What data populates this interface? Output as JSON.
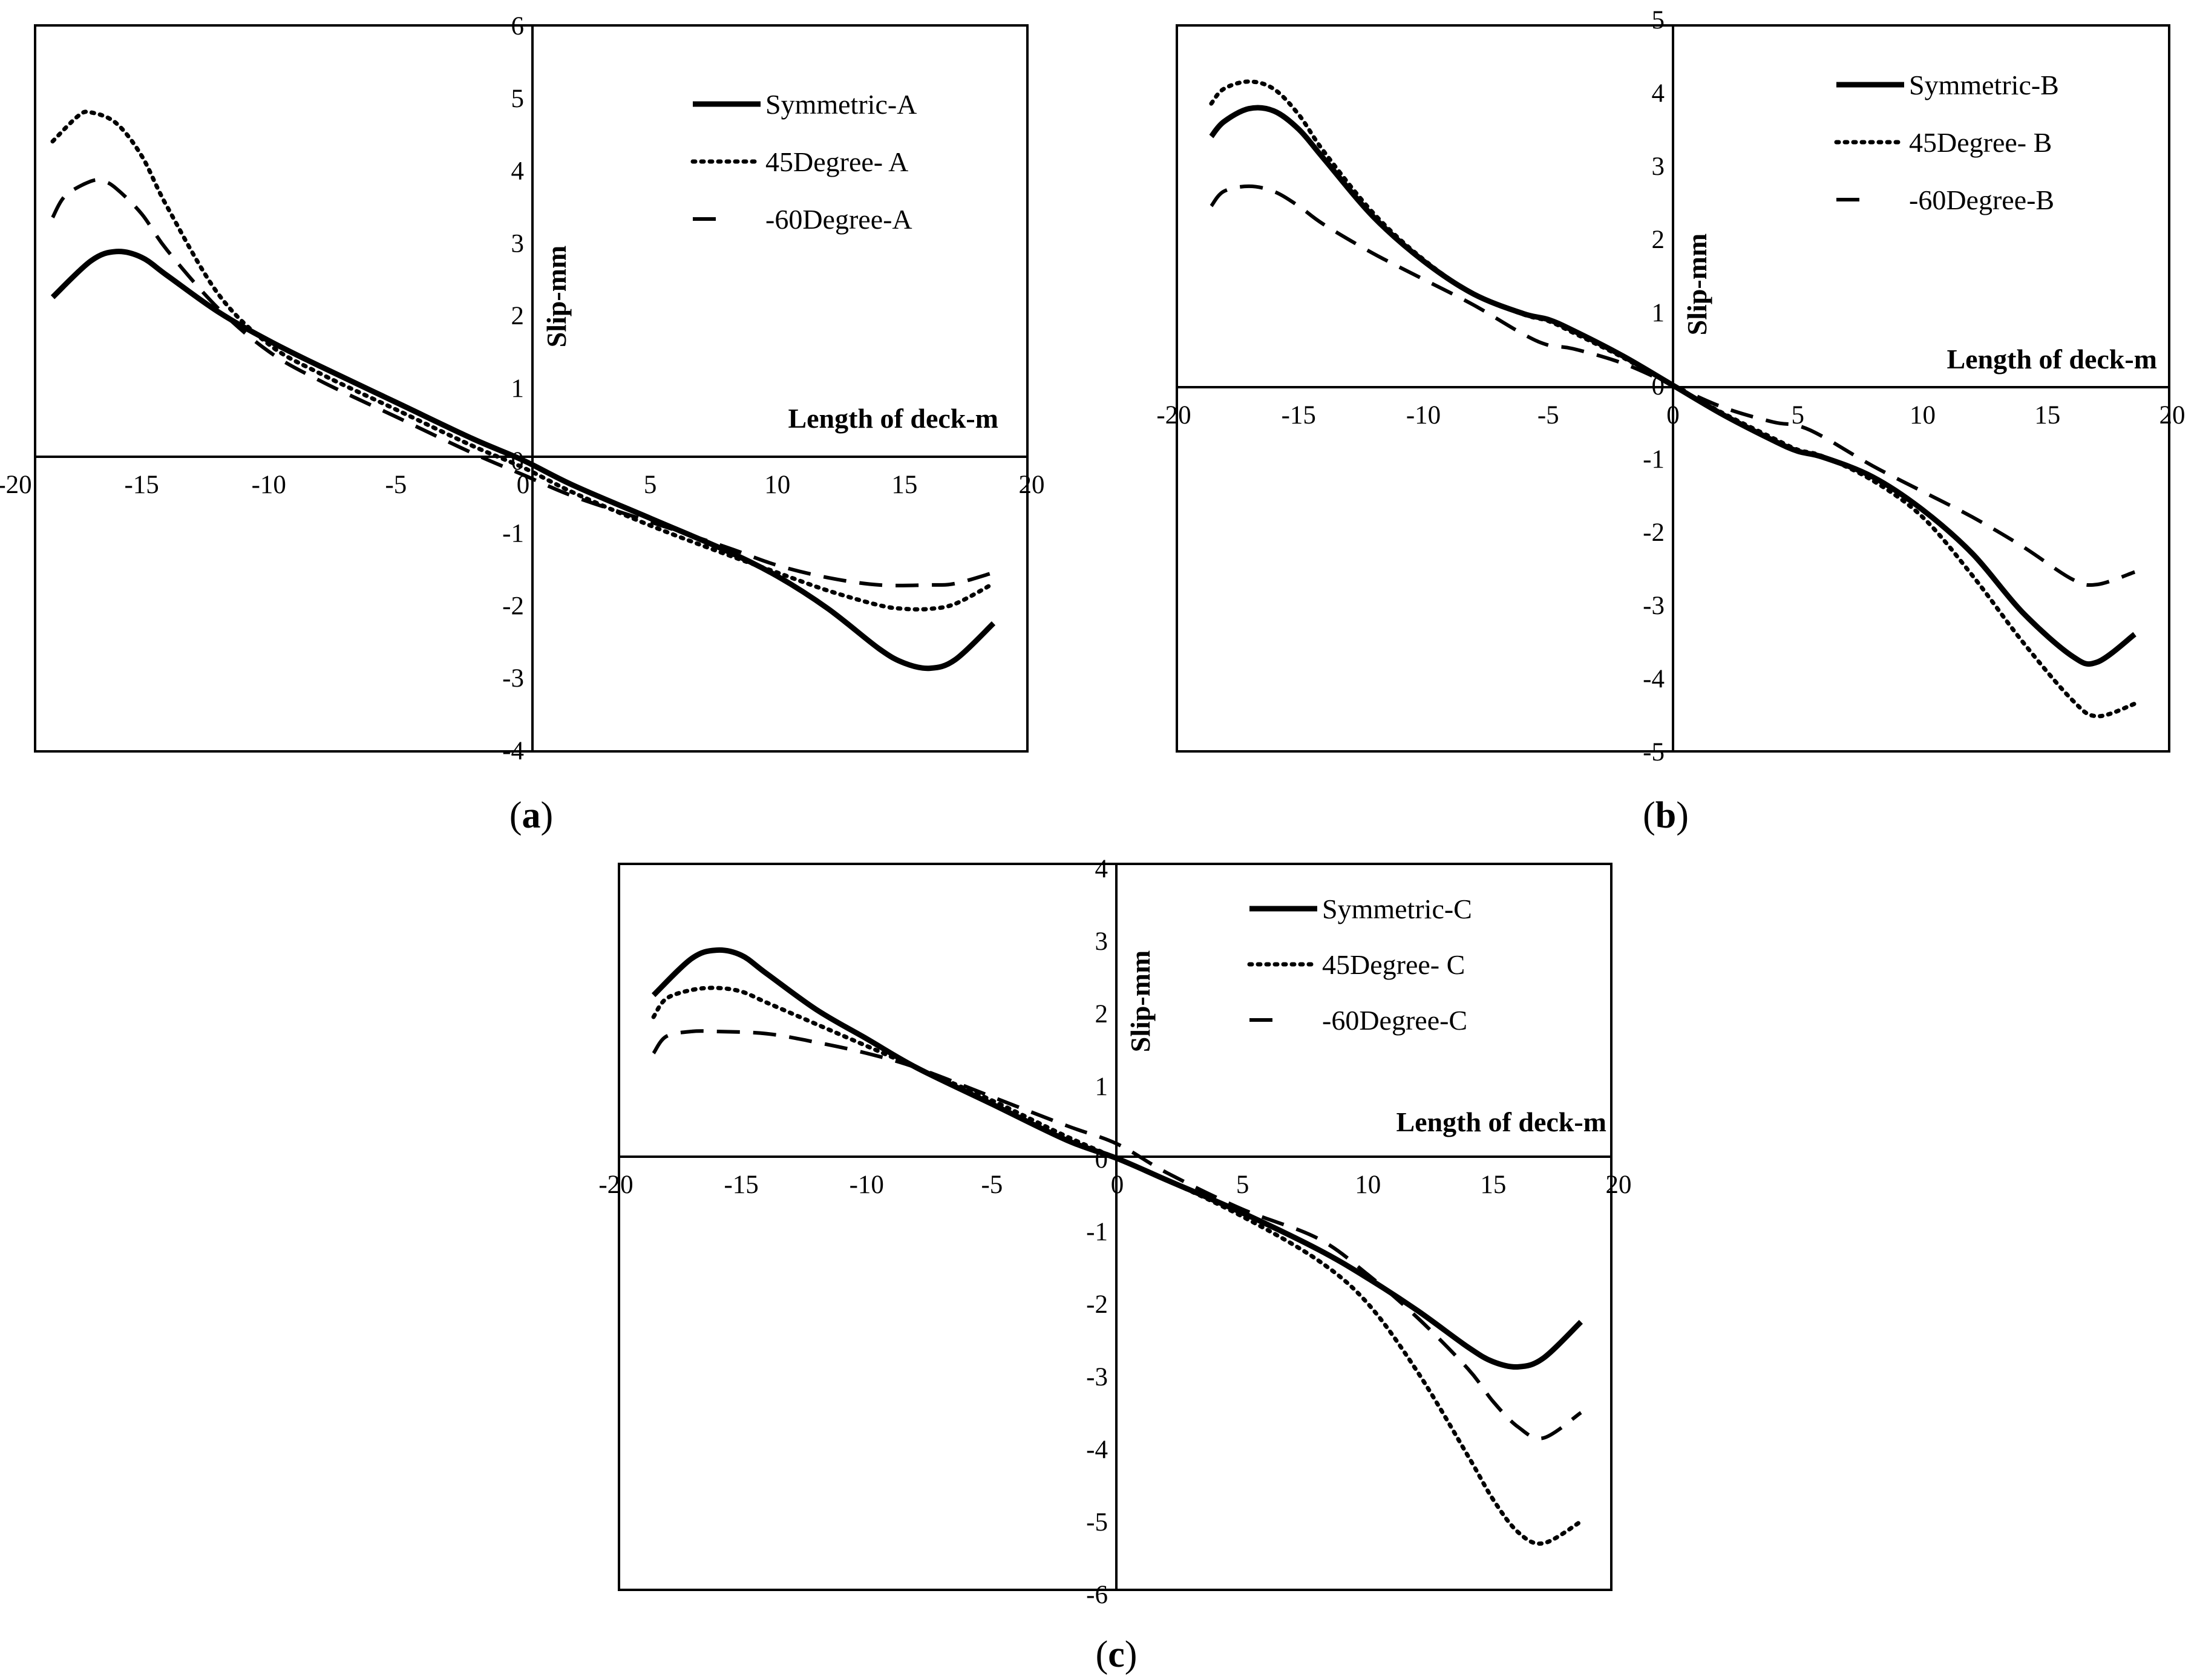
{
  "figure": {
    "captions": [
      "(a)",
      "(b)",
      "(c)"
    ]
  },
  "chart_data": [
    {
      "id": "a",
      "type": "line",
      "caption": "(a)",
      "caption_letter": "a",
      "xlabel": "Length of deck-m",
      "ylabel": "Slip-mm",
      "xlim": [
        -20,
        20
      ],
      "ylim": [
        -4,
        6
      ],
      "xticks": [
        -20,
        -15,
        -10,
        -5,
        0,
        5,
        10,
        15,
        20
      ],
      "yticks": [
        -4,
        -3,
        -2,
        -1,
        0,
        1,
        2,
        3,
        4,
        5,
        6
      ],
      "legend_position": "top-right",
      "grid": false,
      "series": [
        {
          "name": "Symmetric-A",
          "style": "solid",
          "x": [
            -18.5,
            -17,
            -16,
            -15,
            -14,
            -12,
            -10,
            -8,
            -5,
            -2,
            0,
            2,
            5,
            8,
            10,
            12,
            14,
            15,
            16,
            17,
            18.5
          ],
          "y": [
            2.25,
            2.75,
            2.88,
            2.8,
            2.55,
            2.05,
            1.65,
            1.3,
            0.8,
            0.3,
            0.0,
            -0.35,
            -0.8,
            -1.25,
            -1.6,
            -2.05,
            -2.6,
            -2.8,
            -2.87,
            -2.75,
            -2.25
          ]
        },
        {
          "name": "45Degree- A",
          "style": "dotted",
          "x": [
            -18.5,
            -17.5,
            -17,
            -16,
            -15,
            -14,
            -12,
            -10,
            -8,
            -5,
            -2,
            0,
            2,
            5,
            8,
            10,
            12,
            14,
            15,
            16,
            17,
            18.5
          ],
          "y": [
            4.4,
            4.75,
            4.8,
            4.65,
            4.2,
            3.5,
            2.3,
            1.6,
            1.2,
            0.7,
            0.2,
            -0.1,
            -0.45,
            -0.9,
            -1.3,
            -1.55,
            -1.8,
            -2.0,
            -2.05,
            -2.05,
            -1.98,
            -1.7
          ]
        },
        {
          "name": "-60Degree-A",
          "style": "dashed",
          "x": [
            -18.5,
            -18,
            -17,
            -16.5,
            -16,
            -15,
            -14,
            -12,
            -10,
            -8,
            -5,
            -2,
            0,
            2,
            5,
            8,
            10,
            12,
            14,
            16,
            17,
            18.5
          ],
          "y": [
            3.35,
            3.65,
            3.85,
            3.85,
            3.75,
            3.4,
            2.9,
            2.1,
            1.5,
            1.1,
            0.6,
            0.1,
            -0.2,
            -0.5,
            -0.85,
            -1.2,
            -1.45,
            -1.62,
            -1.72,
            -1.72,
            -1.7,
            -1.55
          ]
        }
      ]
    },
    {
      "id": "b",
      "type": "line",
      "caption": "(b)",
      "caption_letter": "b",
      "xlabel": "Length of deck-m",
      "ylabel": "Slip-mm",
      "xlim": [
        -20,
        20
      ],
      "ylim": [
        -5,
        5
      ],
      "xticks": [
        -20,
        -15,
        -10,
        -5,
        0,
        5,
        10,
        15,
        20
      ],
      "yticks": [
        -5,
        -4,
        -3,
        -2,
        -1,
        0,
        1,
        2,
        3,
        4,
        5
      ],
      "legend_position": "top-right",
      "grid": false,
      "series": [
        {
          "name": "Symmetric-B",
          "style": "solid",
          "x": [
            -18.5,
            -18,
            -17,
            -16,
            -15,
            -14,
            -12,
            -10,
            -8,
            -6,
            -5,
            -4,
            -2,
            0,
            2,
            4,
            5,
            6,
            8,
            10,
            12,
            14,
            16,
            17,
            18.5
          ],
          "y": [
            3.4,
            3.6,
            3.78,
            3.75,
            3.5,
            3.1,
            2.3,
            1.7,
            1.25,
            0.98,
            0.9,
            0.75,
            0.4,
            0.0,
            -0.4,
            -0.75,
            -0.9,
            -0.98,
            -1.25,
            -1.7,
            -2.3,
            -3.1,
            -3.7,
            -3.78,
            -3.4
          ]
        },
        {
          "name": "45Degree- B",
          "style": "dotted",
          "x": [
            -18.5,
            -18,
            -17,
            -16,
            -15,
            -14,
            -12,
            -10,
            -8,
            -6,
            -5,
            -4,
            -2,
            0,
            2,
            4,
            5,
            6,
            8,
            10,
            12,
            14,
            16,
            17,
            18.5
          ],
          "y": [
            3.85,
            4.05,
            4.15,
            4.05,
            3.7,
            3.2,
            2.35,
            1.72,
            1.25,
            0.97,
            0.88,
            0.72,
            0.38,
            0.0,
            -0.38,
            -0.72,
            -0.88,
            -0.97,
            -1.3,
            -1.8,
            -2.6,
            -3.5,
            -4.3,
            -4.52,
            -4.35
          ]
        },
        {
          "name": "-60Degree-B",
          "style": "dashed",
          "x": [
            -18.5,
            -18,
            -17,
            -16,
            -15,
            -14,
            -12,
            -10,
            -8,
            -6,
            -5,
            -4,
            -2,
            0,
            2,
            4,
            5,
            6,
            8,
            10,
            12,
            14,
            16,
            17,
            18.5
          ],
          "y": [
            2.45,
            2.65,
            2.72,
            2.65,
            2.45,
            2.2,
            1.8,
            1.45,
            1.1,
            0.7,
            0.55,
            0.5,
            0.3,
            0.0,
            -0.3,
            -0.5,
            -0.55,
            -0.7,
            -1.1,
            -1.45,
            -1.8,
            -2.2,
            -2.65,
            -2.72,
            -2.55
          ]
        }
      ]
    },
    {
      "id": "c",
      "type": "line",
      "caption": "(c)",
      "caption_letter": "c",
      "xlabel": "Length of deck-m",
      "ylabel": "Slip-mm",
      "xlim": [
        -20,
        20
      ],
      "ylim": [
        -6,
        4
      ],
      "xticks": [
        -20,
        -15,
        -10,
        -5,
        0,
        5,
        10,
        15,
        20
      ],
      "yticks": [
        -6,
        -5,
        -4,
        -3,
        -2,
        -1,
        0,
        1,
        2,
        3,
        4
      ],
      "legend_position": "top-right",
      "grid": false,
      "series": [
        {
          "name": "Symmetric-C",
          "style": "solid",
          "x": [
            -18.5,
            -17,
            -16,
            -15,
            -14,
            -12,
            -10,
            -8,
            -5,
            -2,
            0,
            2,
            5,
            8,
            10,
            12,
            14,
            15,
            16,
            17,
            18.5
          ],
          "y": [
            2.25,
            2.75,
            2.87,
            2.8,
            2.55,
            2.05,
            1.65,
            1.25,
            0.75,
            0.25,
            0.0,
            -0.3,
            -0.75,
            -1.25,
            -1.65,
            -2.1,
            -2.6,
            -2.8,
            -2.87,
            -2.75,
            -2.25
          ]
        },
        {
          "name": "45Degree- C",
          "style": "dotted",
          "x": [
            -18.5,
            -18,
            -17,
            -16,
            -15,
            -14,
            -12,
            -10,
            -8,
            -5,
            -2,
            0,
            2,
            5,
            8,
            10,
            12,
            14,
            15,
            16,
            17,
            18.5
          ],
          "y": [
            1.95,
            2.2,
            2.32,
            2.35,
            2.3,
            2.15,
            1.85,
            1.55,
            1.25,
            0.8,
            0.3,
            0.0,
            -0.3,
            -0.8,
            -1.4,
            -2.0,
            -2.95,
            -4.1,
            -4.7,
            -5.15,
            -5.3,
            -5.0
          ]
        },
        {
          "name": "-60Degree-C",
          "style": "dashed",
          "x": [
            -18.5,
            -18,
            -17,
            -16,
            -14,
            -12,
            -10,
            -8,
            -5,
            -2,
            0,
            2,
            5,
            8,
            10,
            12,
            14,
            15,
            16,
            17,
            18.5
          ],
          "y": [
            1.45,
            1.68,
            1.75,
            1.75,
            1.72,
            1.6,
            1.45,
            1.25,
            0.85,
            0.45,
            0.2,
            -0.2,
            -0.7,
            -1.1,
            -1.6,
            -2.2,
            -2.9,
            -3.35,
            -3.7,
            -3.85,
            -3.5
          ]
        }
      ]
    }
  ]
}
